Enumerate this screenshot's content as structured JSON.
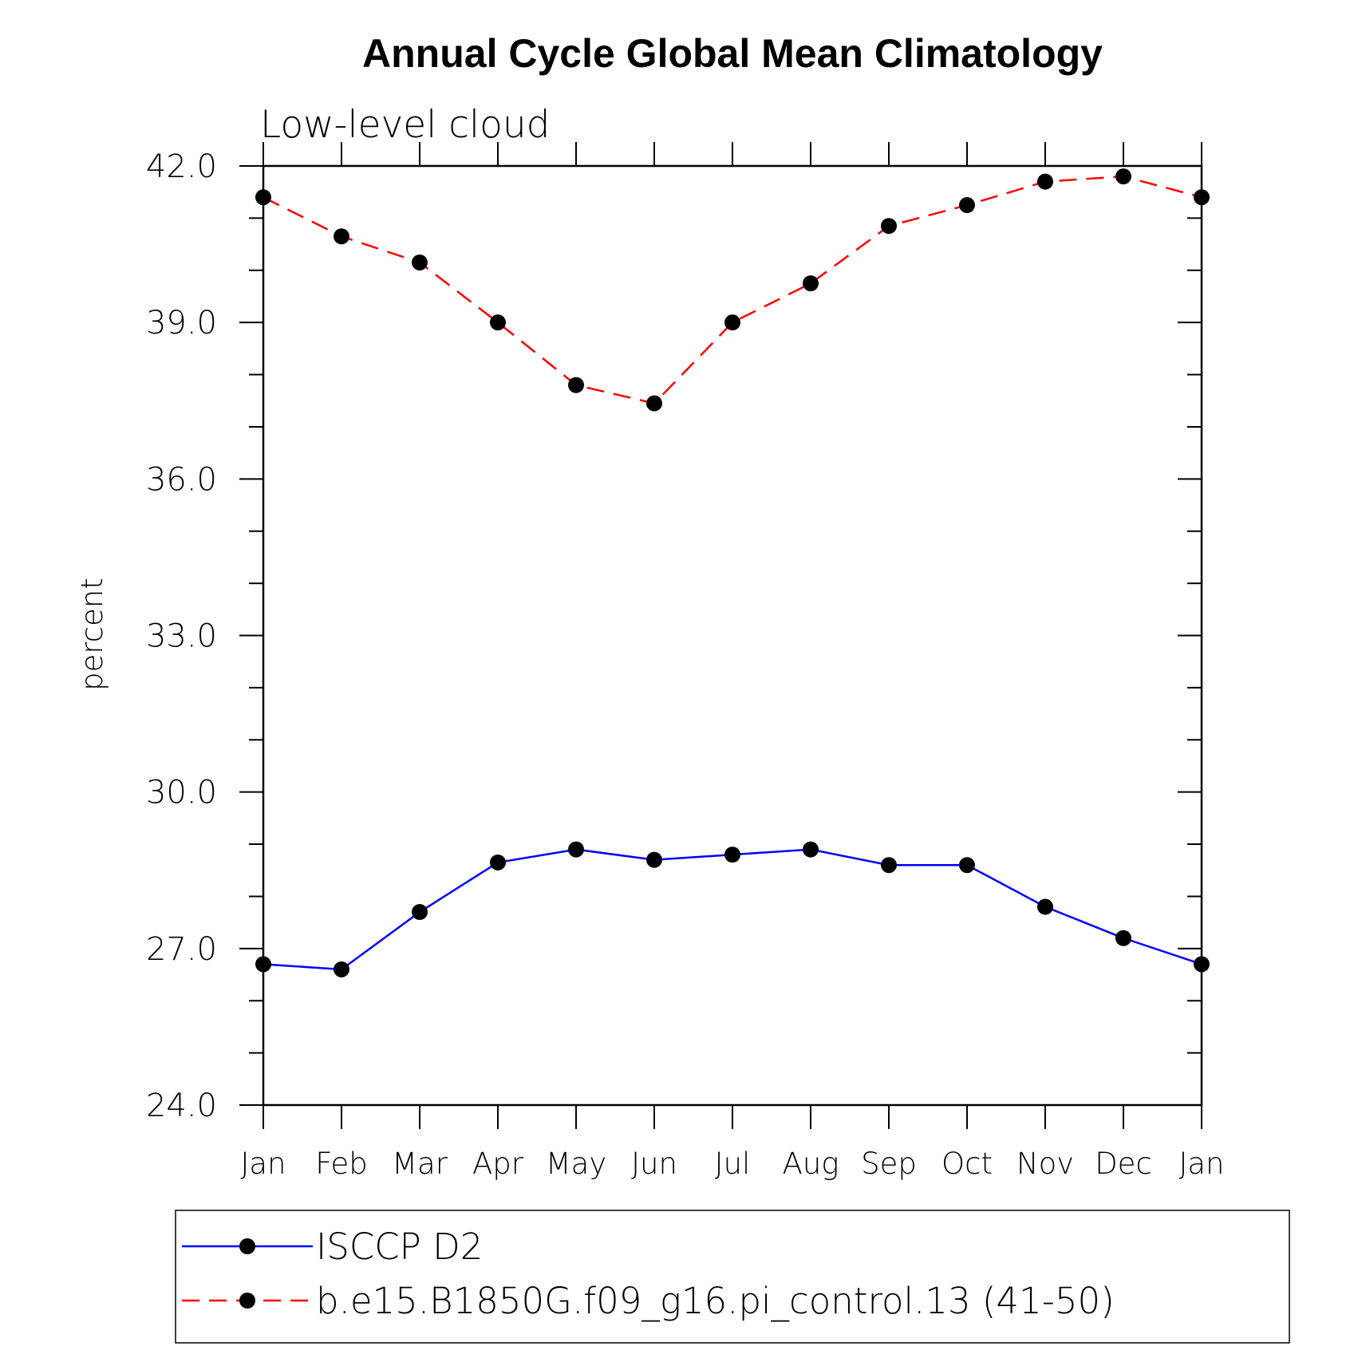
{
  "chart_data": {
    "type": "line",
    "title": "Annual Cycle Global Mean Climatology",
    "subtitle": "Low-level cloud",
    "xlabel": "",
    "ylabel": "percent",
    "ylim": [
      24.0,
      42.0
    ],
    "yticks": [
      "24.0",
      "27.0",
      "30.0",
      "33.0",
      "36.0",
      "39.0",
      "42.0"
    ],
    "categories": [
      "Jan",
      "Feb",
      "Mar",
      "Apr",
      "May",
      "Jun",
      "Jul",
      "Aug",
      "Sep",
      "Oct",
      "Nov",
      "Dec",
      "Jan"
    ],
    "grid": false,
    "legend_position": "bottom",
    "series": [
      {
        "name": "ISCCP D2",
        "color": "#0000ff",
        "line_style": "solid",
        "marker": "filled-circle",
        "values": [
          26.7,
          26.6,
          27.7,
          28.65,
          28.9,
          28.7,
          28.8,
          28.9,
          28.6,
          28.6,
          27.8,
          27.2,
          26.7
        ]
      },
      {
        "name": "b.e15.B1850G.f09_g16.pi_control.13 (41-50)",
        "color": "#ff0000",
        "line_style": "dashed",
        "marker": "filled-circle",
        "values": [
          41.4,
          40.65,
          40.15,
          39.0,
          37.8,
          37.45,
          39.0,
          39.75,
          40.85,
          41.25,
          41.7,
          41.8,
          41.4
        ]
      }
    ]
  }
}
